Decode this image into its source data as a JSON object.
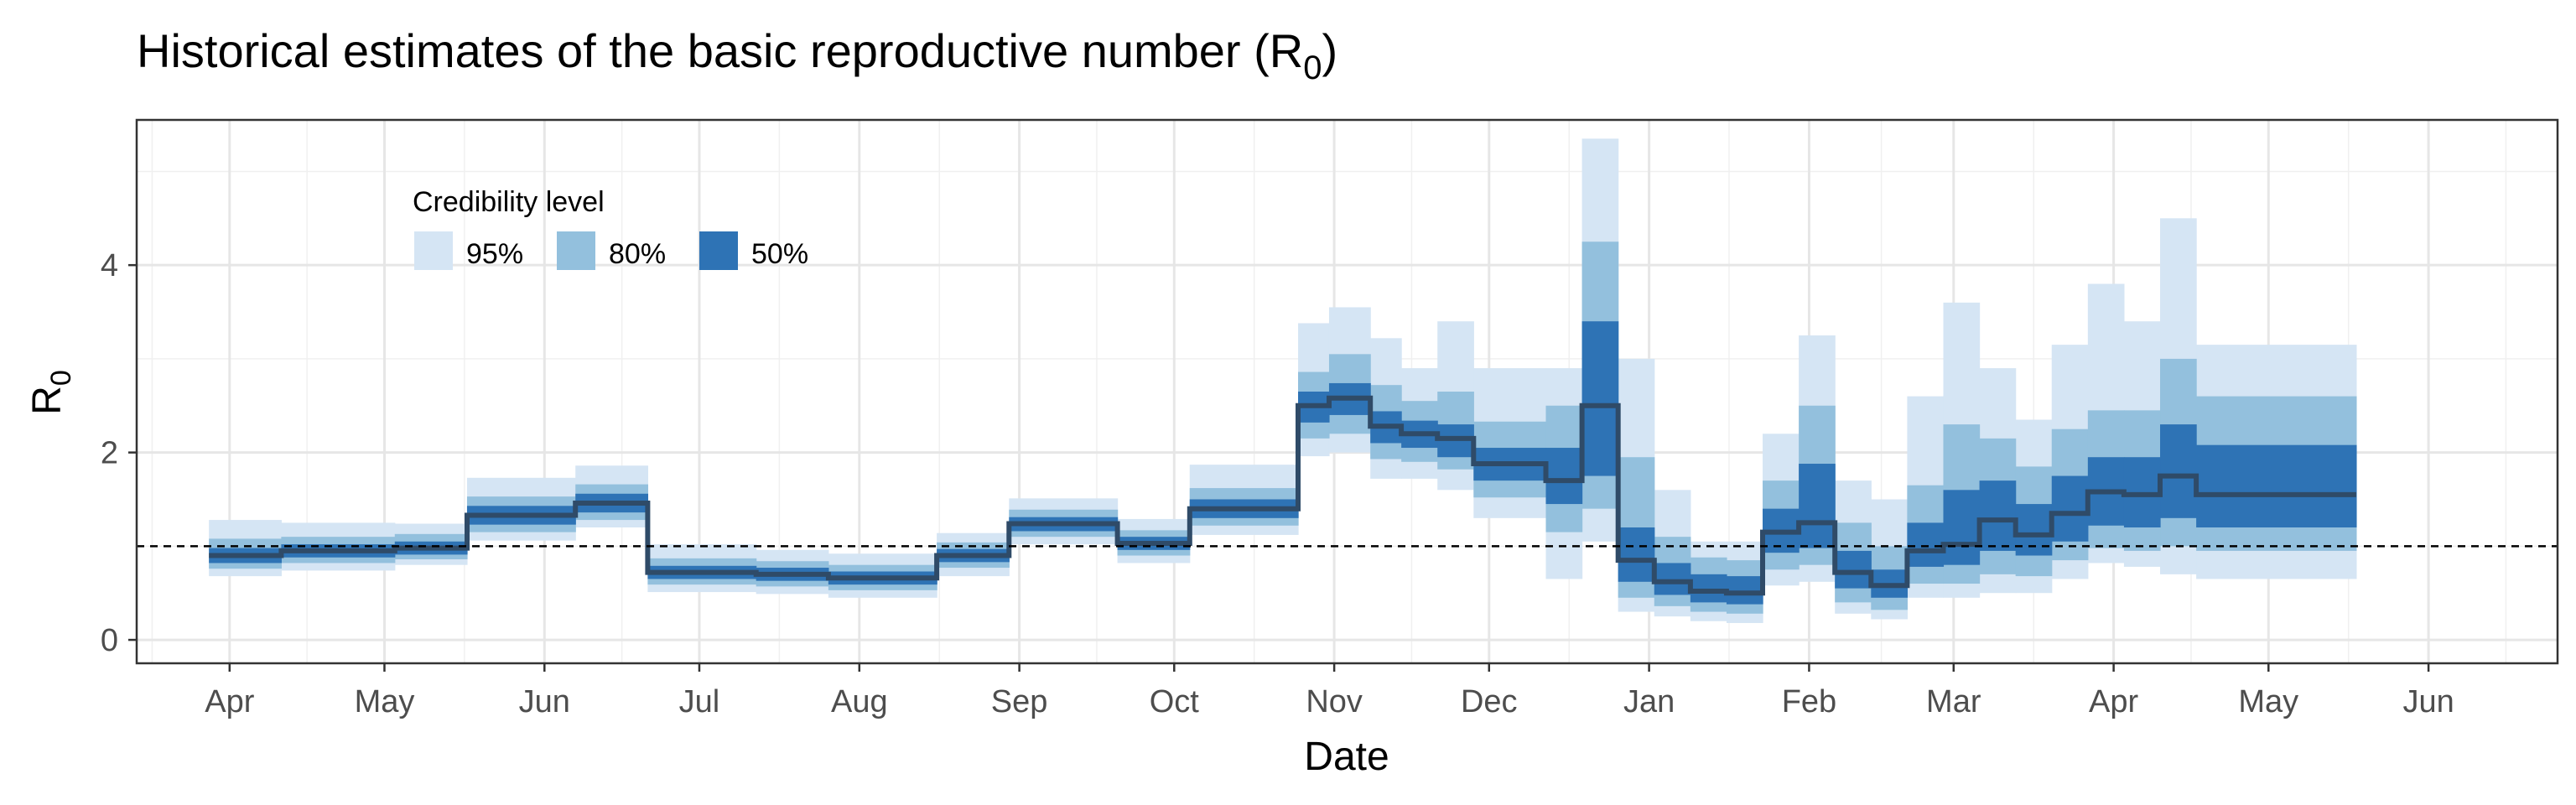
{
  "chart_data": {
    "type": "area",
    "title": "Historical estimates of the basic reproductive number (R",
    "title_subscript": "0",
    "title_suffix": ")",
    "xlabel": "Date",
    "ylabel": "R",
    "ylabel_subscript": "0",
    "x_range": [
      "2020-03-14",
      "2021-06-26"
    ],
    "ylim": [
      -0.25,
      5.55
    ],
    "y_ticks": [
      0,
      2,
      4
    ],
    "x_ticks": [
      {
        "date": "2020-04-01",
        "label": "Apr"
      },
      {
        "date": "2020-05-01",
        "label": "May"
      },
      {
        "date": "2020-06-01",
        "label": "Jun"
      },
      {
        "date": "2020-07-01",
        "label": "Jul"
      },
      {
        "date": "2020-08-01",
        "label": "Aug"
      },
      {
        "date": "2020-09-01",
        "label": "Sep"
      },
      {
        "date": "2020-10-01",
        "label": "Oct"
      },
      {
        "date": "2020-11-01",
        "label": "Nov"
      },
      {
        "date": "2020-12-01",
        "label": "Dec"
      },
      {
        "date": "2021-01-01",
        "label": "Jan"
      },
      {
        "date": "2021-02-01",
        "label": "Feb"
      },
      {
        "date": "2021-03-01",
        "label": "Mar"
      },
      {
        "date": "2021-04-01",
        "label": "Apr"
      },
      {
        "date": "2021-05-01",
        "label": "May"
      },
      {
        "date": "2021-06-01",
        "label": "Jun"
      }
    ],
    "reference_line": 1,
    "grid": true,
    "legend": {
      "title": "Credibility level",
      "placement": "top-left inside",
      "entries": [
        {
          "label": "95%",
          "color": "#d5e5f4"
        },
        {
          "label": "80%",
          "color": "#93c0dd"
        },
        {
          "label": "50%",
          "color": "#2e73b5"
        }
      ]
    },
    "colors": {
      "band95": "#d5e5f4",
      "band80": "#93c0dd",
      "band50": "#2e73b5",
      "median": "#2f4b68",
      "grid": "#e6e6e6",
      "axis_text": "#4d4d4d"
    },
    "segments": [
      {
        "start": "2020-03-28",
        "end": "2020-04-11",
        "median": 0.9,
        "lo50": 0.82,
        "hi50": 0.98,
        "lo80": 0.76,
        "hi80": 1.08,
        "lo95": 0.68,
        "hi95": 1.28
      },
      {
        "start": "2020-04-11",
        "end": "2020-05-03",
        "median": 0.95,
        "lo50": 0.88,
        "hi50": 1.02,
        "lo80": 0.82,
        "hi80": 1.1,
        "lo95": 0.74,
        "hi95": 1.25
      },
      {
        "start": "2020-05-03",
        "end": "2020-05-17",
        "median": 0.98,
        "lo50": 0.91,
        "hi50": 1.05,
        "lo80": 0.86,
        "hi80": 1.13,
        "lo95": 0.8,
        "hi95": 1.24
      },
      {
        "start": "2020-05-17",
        "end": "2020-06-07",
        "median": 1.33,
        "lo50": 1.23,
        "hi50": 1.43,
        "lo80": 1.15,
        "hi80": 1.53,
        "lo95": 1.06,
        "hi95": 1.73
      },
      {
        "start": "2020-06-07",
        "end": "2020-06-21",
        "median": 1.46,
        "lo50": 1.36,
        "hi50": 1.56,
        "lo80": 1.28,
        "hi80": 1.66,
        "lo95": 1.2,
        "hi95": 1.86
      },
      {
        "start": "2020-06-21",
        "end": "2020-07-12",
        "median": 0.72,
        "lo50": 0.65,
        "hi50": 0.79,
        "lo80": 0.59,
        "hi80": 0.87,
        "lo95": 0.51,
        "hi95": 1.02
      },
      {
        "start": "2020-07-12",
        "end": "2020-07-26",
        "median": 0.7,
        "lo50": 0.63,
        "hi50": 0.77,
        "lo80": 0.57,
        "hi80": 0.84,
        "lo95": 0.49,
        "hi95": 0.96
      },
      {
        "start": "2020-07-26",
        "end": "2020-08-16",
        "median": 0.66,
        "lo50": 0.59,
        "hi50": 0.73,
        "lo80": 0.53,
        "hi80": 0.8,
        "lo95": 0.45,
        "hi95": 0.92
      },
      {
        "start": "2020-08-16",
        "end": "2020-08-30",
        "median": 0.9,
        "lo50": 0.83,
        "hi50": 0.97,
        "lo80": 0.77,
        "hi80": 1.04,
        "lo95": 0.68,
        "hi95": 1.14
      },
      {
        "start": "2020-08-30",
        "end": "2020-09-20",
        "median": 1.24,
        "lo50": 1.16,
        "hi50": 1.31,
        "lo80": 1.1,
        "hi80": 1.39,
        "lo95": 1.02,
        "hi95": 1.51
      },
      {
        "start": "2020-09-20",
        "end": "2020-10-04",
        "median": 1.03,
        "lo50": 0.96,
        "hi50": 1.1,
        "lo80": 0.9,
        "hi80": 1.17,
        "lo95": 0.82,
        "hi95": 1.29
      },
      {
        "start": "2020-10-04",
        "end": "2020-10-25",
        "median": 1.4,
        "lo50": 1.3,
        "hi50": 1.5,
        "lo80": 1.22,
        "hi80": 1.62,
        "lo95": 1.12,
        "hi95": 1.87
      },
      {
        "start": "2020-10-25",
        "end": "2020-10-31",
        "median": 2.5,
        "lo50": 2.32,
        "hi50": 2.65,
        "lo80": 2.15,
        "hi80": 2.86,
        "lo95": 1.96,
        "hi95": 3.38
      },
      {
        "start": "2020-10-31",
        "end": "2020-11-08",
        "median": 2.58,
        "lo50": 2.4,
        "hi50": 2.74,
        "lo80": 2.2,
        "hi80": 3.05,
        "lo95": 2.0,
        "hi95": 3.55
      },
      {
        "start": "2020-11-08",
        "end": "2020-11-14",
        "median": 2.28,
        "lo50": 2.1,
        "hi50": 2.44,
        "lo80": 1.93,
        "hi80": 2.72,
        "lo95": 1.72,
        "hi95": 3.22
      },
      {
        "start": "2020-11-14",
        "end": "2020-11-21",
        "median": 2.2,
        "lo50": 2.05,
        "hi50": 2.34,
        "lo80": 1.9,
        "hi80": 2.55,
        "lo95": 1.72,
        "hi95": 2.9
      },
      {
        "start": "2020-11-21",
        "end": "2020-11-28",
        "median": 2.15,
        "lo50": 1.95,
        "hi50": 2.3,
        "lo80": 1.82,
        "hi80": 2.65,
        "lo95": 1.6,
        "hi95": 3.4
      },
      {
        "start": "2020-11-28",
        "end": "2020-12-12",
        "median": 1.88,
        "lo50": 1.7,
        "hi50": 2.05,
        "lo80": 1.52,
        "hi80": 2.33,
        "lo95": 1.3,
        "hi95": 2.9
      },
      {
        "start": "2020-12-12",
        "end": "2020-12-19",
        "median": 1.7,
        "lo50": 1.45,
        "hi50": 2.05,
        "lo80": 1.15,
        "hi80": 2.5,
        "lo95": 0.65,
        "hi95": 2.9
      },
      {
        "start": "2020-12-19",
        "end": "2020-12-26",
        "median": 2.5,
        "lo50": 1.75,
        "hi50": 3.4,
        "lo80": 1.4,
        "hi80": 4.25,
        "lo95": 1.05,
        "hi95": 5.35
      },
      {
        "start": "2020-12-26",
        "end": "2021-01-02",
        "median": 0.85,
        "lo50": 0.62,
        "hi50": 1.2,
        "lo80": 0.45,
        "hi80": 1.95,
        "lo95": 0.3,
        "hi95": 3.0
      },
      {
        "start": "2021-01-02",
        "end": "2021-01-09",
        "median": 0.62,
        "lo50": 0.48,
        "hi50": 0.82,
        "lo80": 0.36,
        "hi80": 1.1,
        "lo95": 0.25,
        "hi95": 1.6
      },
      {
        "start": "2021-01-09",
        "end": "2021-01-16",
        "median": 0.52,
        "lo50": 0.4,
        "hi50": 0.7,
        "lo80": 0.3,
        "hi80": 0.88,
        "lo95": 0.2,
        "hi95": 1.05
      },
      {
        "start": "2021-01-16",
        "end": "2021-01-23",
        "median": 0.5,
        "lo50": 0.38,
        "hi50": 0.68,
        "lo80": 0.28,
        "hi80": 0.85,
        "lo95": 0.18,
        "hi95": 1.05
      },
      {
        "start": "2021-01-23",
        "end": "2021-01-30",
        "median": 1.15,
        "lo50": 0.93,
        "hi50": 1.4,
        "lo80": 0.75,
        "hi80": 1.7,
        "lo95": 0.58,
        "hi95": 2.2
      },
      {
        "start": "2021-01-30",
        "end": "2021-02-06",
        "median": 1.25,
        "lo50": 0.98,
        "hi50": 1.88,
        "lo80": 0.8,
        "hi80": 2.5,
        "lo95": 0.62,
        "hi95": 3.25
      },
      {
        "start": "2021-02-06",
        "end": "2021-02-13",
        "median": 0.72,
        "lo50": 0.55,
        "hi50": 0.95,
        "lo80": 0.4,
        "hi80": 1.25,
        "lo95": 0.28,
        "hi95": 1.7
      },
      {
        "start": "2021-02-13",
        "end": "2021-02-20",
        "median": 0.58,
        "lo50": 0.45,
        "hi50": 0.75,
        "lo80": 0.32,
        "hi80": 1.0,
        "lo95": 0.22,
        "hi95": 1.5
      },
      {
        "start": "2021-02-20",
        "end": "2021-02-27",
        "median": 0.95,
        "lo50": 0.78,
        "hi50": 1.25,
        "lo80": 0.6,
        "hi80": 1.65,
        "lo95": 0.45,
        "hi95": 2.6
      },
      {
        "start": "2021-02-27",
        "end": "2021-03-06",
        "median": 1.02,
        "lo50": 0.8,
        "hi50": 1.6,
        "lo80": 0.6,
        "hi80": 2.3,
        "lo95": 0.45,
        "hi95": 3.6
      },
      {
        "start": "2021-03-06",
        "end": "2021-03-13",
        "median": 1.28,
        "lo50": 0.95,
        "hi50": 1.7,
        "lo80": 0.7,
        "hi80": 2.15,
        "lo95": 0.5,
        "hi95": 2.9
      },
      {
        "start": "2021-03-13",
        "end": "2021-03-20",
        "median": 1.12,
        "lo50": 0.9,
        "hi50": 1.45,
        "lo80": 0.68,
        "hi80": 1.85,
        "lo95": 0.5,
        "hi95": 2.35
      },
      {
        "start": "2021-03-20",
        "end": "2021-03-27",
        "median": 1.35,
        "lo50": 1.05,
        "hi50": 1.75,
        "lo80": 0.85,
        "hi80": 2.25,
        "lo95": 0.65,
        "hi95": 3.15
      },
      {
        "start": "2021-03-27",
        "end": "2021-04-03",
        "median": 1.58,
        "lo50": 1.22,
        "hi50": 1.95,
        "lo80": 0.98,
        "hi80": 2.45,
        "lo95": 0.82,
        "hi95": 3.8
      },
      {
        "start": "2021-04-03",
        "end": "2021-04-10",
        "median": 1.55,
        "lo50": 1.2,
        "hi50": 1.95,
        "lo80": 0.95,
        "hi80": 2.45,
        "lo95": 0.78,
        "hi95": 3.4
      },
      {
        "start": "2021-04-10",
        "end": "2021-04-17",
        "median": 1.75,
        "lo50": 1.3,
        "hi50": 2.3,
        "lo80": 1.0,
        "hi80": 3.0,
        "lo95": 0.7,
        "hi95": 4.5
      },
      {
        "start": "2021-04-17",
        "end": "2021-05-18",
        "median": 1.55,
        "lo50": 1.2,
        "hi50": 2.08,
        "lo80": 0.95,
        "hi80": 2.6,
        "lo95": 0.65,
        "hi95": 3.15
      }
    ]
  }
}
